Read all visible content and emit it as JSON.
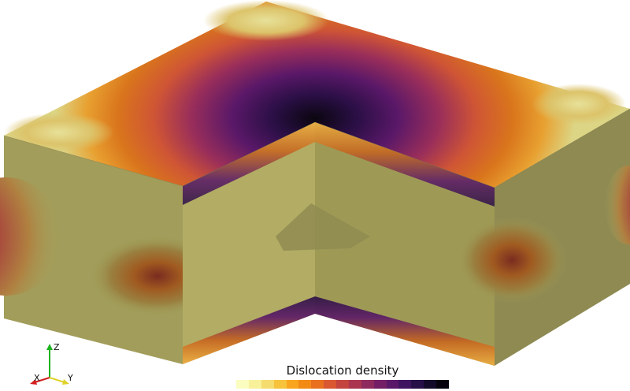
{
  "colorbar": {
    "title": "Dislocation density",
    "colors": [
      "#fbfcbf",
      "#f8f19a",
      "#f5dc6e",
      "#f7c33c",
      "#f9a51f",
      "#f48a16",
      "#e8701f",
      "#d95731",
      "#c4443f",
      "#ab3550",
      "#8f2a5e",
      "#741e66",
      "#5a1868",
      "#3f1460",
      "#270f47",
      "#130a2a",
      "#06030f"
    ]
  },
  "axes_triad": {
    "z_label": "Z",
    "x_label": "X",
    "y_label": "Y"
  },
  "colors": {
    "side_base": "#9e9a56",
    "side_light": "#b4ae67",
    "side_right": "#8e8a52",
    "top_light": "#dcd585",
    "top_orange": "#d06e1c",
    "top_dark": "#0b0610",
    "seam_orange": "#c8651e",
    "seam_purple": "#3a1050"
  }
}
